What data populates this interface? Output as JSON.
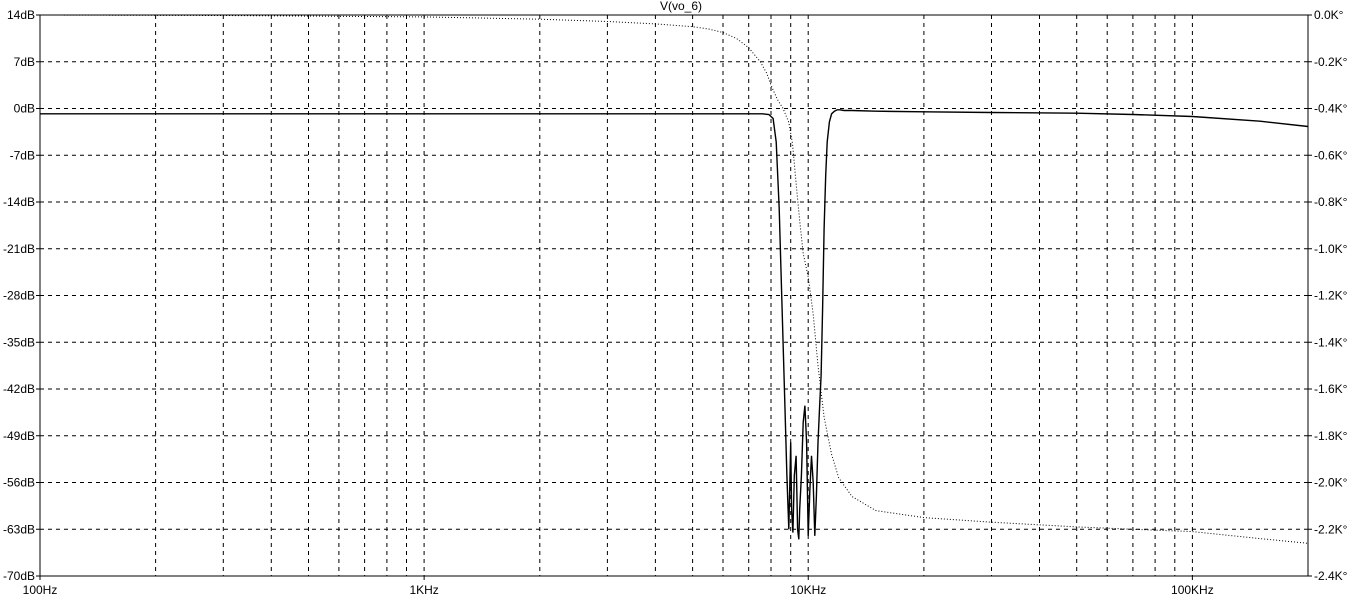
{
  "chart_data": {
    "type": "line",
    "title": "V(vo_6)",
    "xscale": "log",
    "xlim": [
      100,
      200000
    ],
    "x_tick_labels": [
      {
        "value": 100,
        "label": "100Hz"
      },
      {
        "value": 1000,
        "label": "1KHz"
      },
      {
        "value": 10000,
        "label": "10KHz"
      },
      {
        "value": 100000,
        "label": "100KHz"
      }
    ],
    "ylim_left": [
      -70,
      14
    ],
    "y_left_tick_labels": [
      {
        "value": 14,
        "label": "14dB"
      },
      {
        "value": 7,
        "label": "7dB"
      },
      {
        "value": 0,
        "label": "0dB"
      },
      {
        "value": -7,
        "label": "-7dB"
      },
      {
        "value": -14,
        "label": "-14dB"
      },
      {
        "value": -21,
        "label": "-21dB"
      },
      {
        "value": -28,
        "label": "-28dB"
      },
      {
        "value": -35,
        "label": "-35dB"
      },
      {
        "value": -42,
        "label": "-42dB"
      },
      {
        "value": -49,
        "label": "-49dB"
      },
      {
        "value": -56,
        "label": "-56dB"
      },
      {
        "value": -63,
        "label": "-63dB"
      },
      {
        "value": -70,
        "label": "-70dB"
      }
    ],
    "ylim_right": [
      -2.4,
      0.0
    ],
    "y_right_tick_labels": [
      {
        "value": 0.0,
        "label": "0.0K°"
      },
      {
        "value": -0.2,
        "label": "-0.2K°"
      },
      {
        "value": -0.4,
        "label": "-0.4K°"
      },
      {
        "value": -0.6,
        "label": "-0.6K°"
      },
      {
        "value": -0.8,
        "label": "-0.8K°"
      },
      {
        "value": -1.0,
        "label": "-1.0K°"
      },
      {
        "value": -1.2,
        "label": "-1.2K°"
      },
      {
        "value": -1.4,
        "label": "-1.4K°"
      },
      {
        "value": -1.6,
        "label": "-1.6K°"
      },
      {
        "value": -1.8,
        "label": "-1.8K°"
      },
      {
        "value": -2.0,
        "label": "-2.0K°"
      },
      {
        "value": -2.2,
        "label": "-2.2K°"
      },
      {
        "value": -2.4,
        "label": "-2.4K°"
      }
    ],
    "grid": true,
    "series": [
      {
        "axis": "left",
        "style": "solid",
        "color": "#000000",
        "x": [
          100,
          300,
          1000,
          3000,
          6000,
          7000,
          7600,
          7900,
          8100,
          8250,
          8400,
          8550,
          8700,
          8800,
          8900,
          8950,
          9000,
          9050,
          9120,
          9200,
          9300,
          9380,
          9450,
          9500,
          9600,
          9700,
          9800,
          9900,
          10000,
          10100,
          10200,
          10300,
          10400,
          10500,
          10600,
          10700,
          10800,
          10900,
          11000,
          11100,
          11200,
          11350,
          11500,
          11700,
          11900,
          12100,
          12400,
          13000,
          15000,
          20000,
          30000,
          50000,
          70000,
          100000,
          150000,
          200000
        ],
        "y": [
          -0.8,
          -0.8,
          -0.8,
          -0.8,
          -0.8,
          -0.8,
          -0.8,
          -0.9,
          -1.5,
          -5,
          -15,
          -30,
          -45,
          -55,
          -63,
          -57,
          -50,
          -60,
          -63.5,
          -55,
          -52,
          -63,
          -64.5,
          -60,
          -55,
          -47,
          -44.5,
          -50,
          -64,
          -57,
          -52,
          -56,
          -64,
          -58,
          -50,
          -45,
          -40,
          -30,
          -18,
          -10,
          -5,
          -2,
          -0.8,
          -0.4,
          -0.2,
          -0.2,
          -0.3,
          -0.3,
          -0.4,
          -0.5,
          -0.6,
          -0.7,
          -0.9,
          -1.2,
          -1.9,
          -2.7
        ]
      },
      {
        "axis": "right",
        "style": "dotted",
        "color": "#000000",
        "x": [
          100,
          300,
          1000,
          2000,
          3000,
          4000,
          5000,
          5500,
          6000,
          6500,
          7000,
          7500,
          7800,
          8000,
          8300,
          8600,
          8900,
          9100,
          9300,
          9500,
          9700,
          10000,
          10300,
          10600,
          11000,
          11500,
          12000,
          13000,
          15000,
          20000,
          30000,
          50000,
          70000,
          100000,
          150000,
          200000
        ],
        "y": [
          0.0,
          -0.002,
          -0.008,
          -0.018,
          -0.028,
          -0.038,
          -0.05,
          -0.06,
          -0.075,
          -0.1,
          -0.14,
          -0.2,
          -0.25,
          -0.3,
          -0.36,
          -0.4,
          -0.46,
          -0.55,
          -0.72,
          -0.88,
          -1.02,
          -1.12,
          -1.28,
          -1.5,
          -1.72,
          -1.88,
          -1.98,
          -2.06,
          -2.12,
          -2.15,
          -2.17,
          -2.19,
          -2.2,
          -2.21,
          -2.24,
          -2.26
        ]
      }
    ]
  }
}
